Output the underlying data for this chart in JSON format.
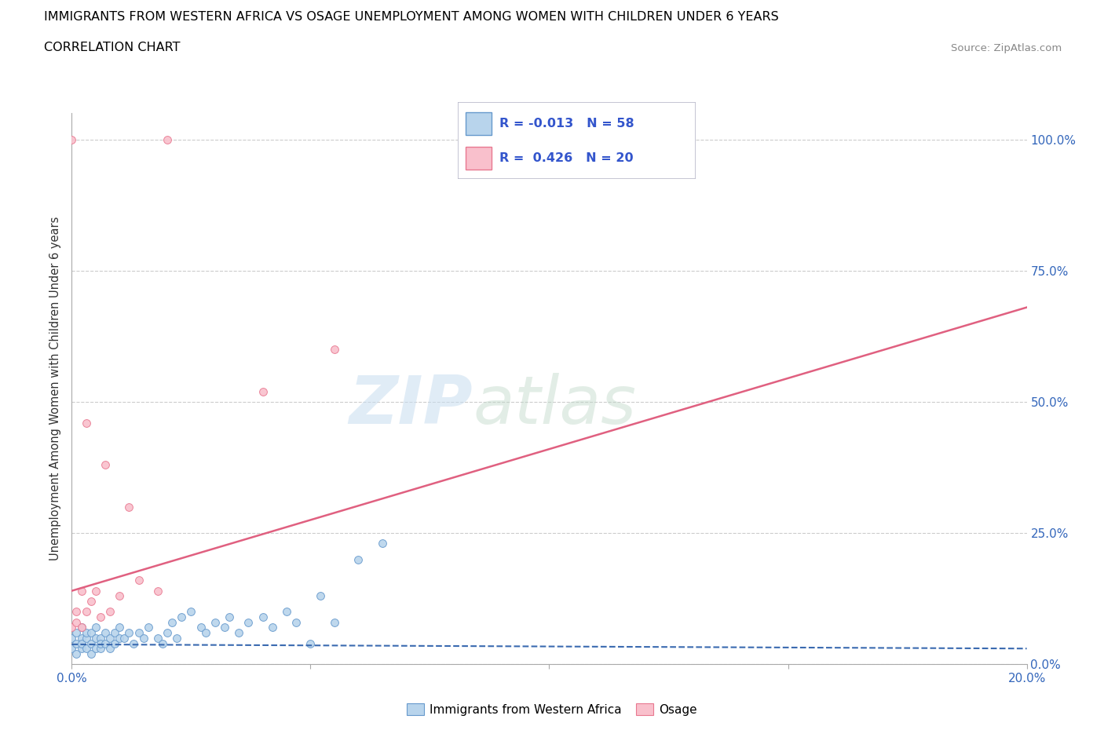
{
  "title_line1": "IMMIGRANTS FROM WESTERN AFRICA VS OSAGE UNEMPLOYMENT AMONG WOMEN WITH CHILDREN UNDER 6 YEARS",
  "title_line2": "CORRELATION CHART",
  "source": "Source: ZipAtlas.com",
  "ylabel": "Unemployment Among Women with Children Under 6 years",
  "xlim": [
    0.0,
    0.2
  ],
  "ylim": [
    0.0,
    1.05
  ],
  "xticks": [
    0.0,
    0.05,
    0.1,
    0.15,
    0.2
  ],
  "xtick_labels": [
    "0.0%",
    "",
    "",
    "",
    "20.0%"
  ],
  "yticks": [
    0.0,
    0.25,
    0.5,
    0.75,
    1.0
  ],
  "ytick_labels_right": [
    "0.0%",
    "25.0%",
    "50.0%",
    "75.0%",
    "100.0%"
  ],
  "blue_fill": "#b8d4ec",
  "blue_edge": "#6699cc",
  "pink_fill": "#f9c0cc",
  "pink_edge": "#e87890",
  "blue_line_color": "#3a6ab0",
  "pink_line_color": "#e06080",
  "blue_scatter_x": [
    0.0,
    0.0,
    0.001,
    0.001,
    0.001,
    0.002,
    0.002,
    0.002,
    0.002,
    0.003,
    0.003,
    0.003,
    0.004,
    0.004,
    0.004,
    0.005,
    0.005,
    0.005,
    0.006,
    0.006,
    0.006,
    0.007,
    0.007,
    0.008,
    0.008,
    0.009,
    0.009,
    0.01,
    0.01,
    0.011,
    0.012,
    0.013,
    0.014,
    0.015,
    0.016,
    0.018,
    0.019,
    0.02,
    0.021,
    0.022,
    0.023,
    0.025,
    0.027,
    0.028,
    0.03,
    0.032,
    0.033,
    0.035,
    0.037,
    0.04,
    0.042,
    0.045,
    0.047,
    0.05,
    0.052,
    0.055,
    0.06,
    0.065
  ],
  "blue_scatter_y": [
    0.03,
    0.05,
    0.02,
    0.04,
    0.06,
    0.03,
    0.05,
    0.04,
    0.07,
    0.03,
    0.05,
    0.06,
    0.02,
    0.04,
    0.06,
    0.03,
    0.05,
    0.07,
    0.03,
    0.05,
    0.04,
    0.04,
    0.06,
    0.03,
    0.05,
    0.04,
    0.06,
    0.05,
    0.07,
    0.05,
    0.06,
    0.04,
    0.06,
    0.05,
    0.07,
    0.05,
    0.04,
    0.06,
    0.08,
    0.05,
    0.09,
    0.1,
    0.07,
    0.06,
    0.08,
    0.07,
    0.09,
    0.06,
    0.08,
    0.09,
    0.07,
    0.1,
    0.08,
    0.04,
    0.13,
    0.08,
    0.2,
    0.23
  ],
  "pink_scatter_x": [
    0.0,
    0.0,
    0.001,
    0.001,
    0.002,
    0.002,
    0.003,
    0.003,
    0.004,
    0.005,
    0.006,
    0.007,
    0.008,
    0.01,
    0.012,
    0.014,
    0.018,
    0.02,
    0.04,
    0.055
  ],
  "pink_scatter_y": [
    0.07,
    1.0,
    0.08,
    0.1,
    0.07,
    0.14,
    0.1,
    0.46,
    0.12,
    0.14,
    0.09,
    0.38,
    0.1,
    0.13,
    0.3,
    0.16,
    0.14,
    1.0,
    0.52,
    0.6
  ],
  "blue_trend_x": [
    0.0,
    0.2
  ],
  "blue_trend_y": [
    0.038,
    0.03
  ],
  "pink_trend_x": [
    0.0,
    0.2
  ],
  "pink_trend_y": [
    0.14,
    0.68
  ],
  "watermark_zip": "ZIP",
  "watermark_atlas": "atlas"
}
